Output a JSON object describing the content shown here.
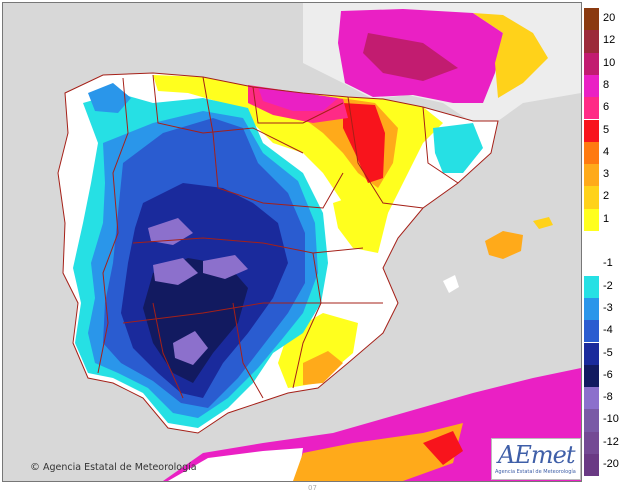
{
  "credit": {
    "symbol": "©",
    "text": "Agencia Estatal de Meteorología"
  },
  "logo": {
    "mark": "AEmet",
    "subtitle": "Agencia Estatal de Meteorología"
  },
  "bottom_mark": "07",
  "legend": [
    {
      "label": "20",
      "color": "#8a3a10"
    },
    {
      "label": "12",
      "color": "#9c2a3a"
    },
    {
      "label": "10",
      "color": "#c21c70"
    },
    {
      "label": "8",
      "color": "#ea20c4"
    },
    {
      "label": "6",
      "color": "#ff2a86"
    },
    {
      "label": "5",
      "color": "#f8141c"
    },
    {
      "label": "4",
      "color": "#ff7a10"
    },
    {
      "label": "3",
      "color": "#ffaa1a"
    },
    {
      "label": "2",
      "color": "#ffd21a"
    },
    {
      "label": "1",
      "color": "#ffff1e"
    },
    {
      "label": "",
      "color": "#ffffff"
    },
    {
      "label": "-1",
      "color": "#ffffff"
    },
    {
      "label": "-2",
      "color": "#26e0e4"
    },
    {
      "label": "-3",
      "color": "#2a96ea"
    },
    {
      "label": "-4",
      "color": "#2a5cd0"
    },
    {
      "label": "-5",
      "color": "#1a2a9c"
    },
    {
      "label": "-6",
      "color": "#121a60"
    },
    {
      "label": "-8",
      "color": "#8c70cc"
    },
    {
      "label": "-10",
      "color": "#7a5aa6"
    },
    {
      "label": "-12",
      "color": "#744a94"
    },
    {
      "label": "-20",
      "color": "#6a3a84"
    }
  ],
  "colors": {
    "sea": "#d8d8d8",
    "france": "#ededed",
    "border": "#a52018"
  }
}
